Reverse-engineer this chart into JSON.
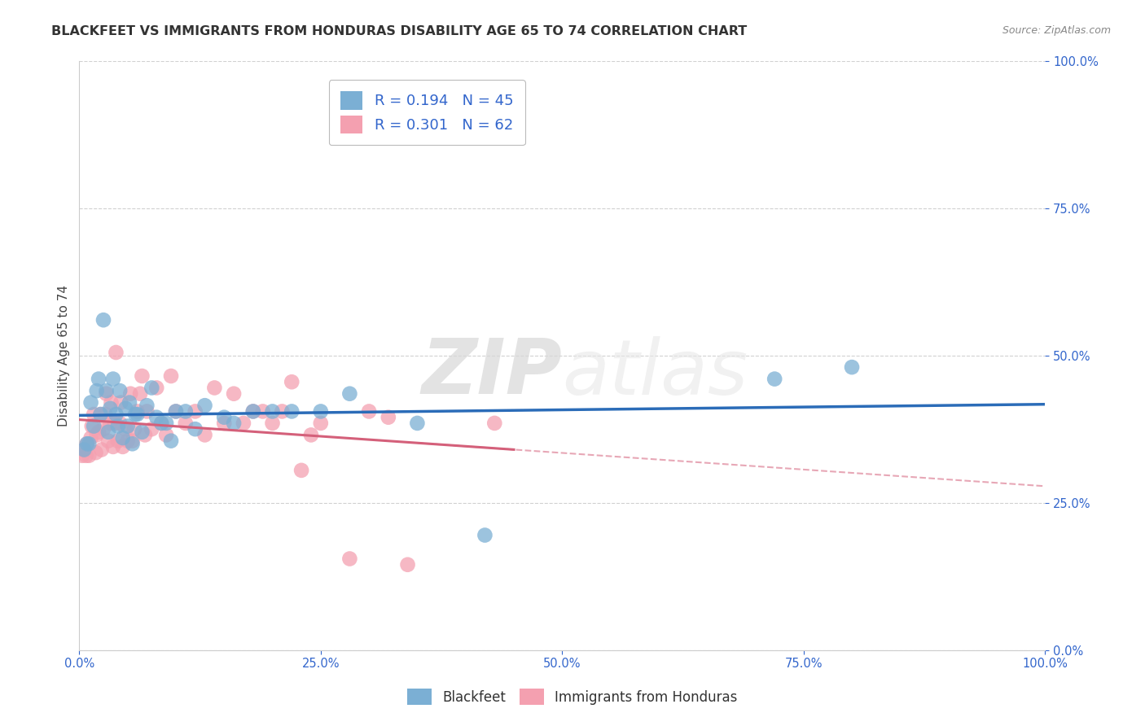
{
  "title": "BLACKFEET VS IMMIGRANTS FROM HONDURAS DISABILITY AGE 65 TO 74 CORRELATION CHART",
  "source": "Source: ZipAtlas.com",
  "ylabel": "Disability Age 65 to 74",
  "blue_label": "Blackfeet",
  "pink_label": "Immigrants from Honduras",
  "blue_R": 0.194,
  "blue_N": 45,
  "pink_R": 0.301,
  "pink_N": 62,
  "blue_color": "#7bafd4",
  "pink_color": "#f4a0b0",
  "blue_line_color": "#2b6cb8",
  "pink_line_color": "#d4607a",
  "xlim": [
    0,
    1
  ],
  "ylim": [
    0,
    1
  ],
  "xticks": [
    0.0,
    0.25,
    0.5,
    0.75,
    1.0
  ],
  "yticks": [
    0.0,
    0.25,
    0.5,
    0.75,
    1.0
  ],
  "blue_x": [
    0.005,
    0.008,
    0.01,
    0.012,
    0.015,
    0.018,
    0.02,
    0.022,
    0.025,
    0.028,
    0.03,
    0.032,
    0.035,
    0.038,
    0.04,
    0.042,
    0.045,
    0.048,
    0.05,
    0.052,
    0.055,
    0.058,
    0.06,
    0.065,
    0.07,
    0.075,
    0.08,
    0.085,
    0.09,
    0.095,
    0.1,
    0.11,
    0.12,
    0.13,
    0.15,
    0.16,
    0.18,
    0.2,
    0.22,
    0.25,
    0.28,
    0.35,
    0.42,
    0.72,
    0.8
  ],
  "blue_y": [
    0.34,
    0.35,
    0.35,
    0.42,
    0.38,
    0.44,
    0.46,
    0.4,
    0.56,
    0.44,
    0.37,
    0.41,
    0.46,
    0.4,
    0.38,
    0.44,
    0.36,
    0.41,
    0.38,
    0.42,
    0.35,
    0.4,
    0.4,
    0.37,
    0.415,
    0.445,
    0.395,
    0.385,
    0.385,
    0.355,
    0.405,
    0.405,
    0.375,
    0.415,
    0.395,
    0.385,
    0.405,
    0.405,
    0.405,
    0.405,
    0.435,
    0.385,
    0.195,
    0.46,
    0.48
  ],
  "pink_x": [
    0.003,
    0.005,
    0.007,
    0.008,
    0.01,
    0.012,
    0.013,
    0.015,
    0.017,
    0.018,
    0.02,
    0.022,
    0.023,
    0.025,
    0.027,
    0.028,
    0.03,
    0.032,
    0.033,
    0.035,
    0.037,
    0.038,
    0.04,
    0.042,
    0.043,
    0.045,
    0.048,
    0.05,
    0.053,
    0.055,
    0.057,
    0.06,
    0.063,
    0.065,
    0.068,
    0.07,
    0.075,
    0.08,
    0.085,
    0.09,
    0.095,
    0.1,
    0.11,
    0.12,
    0.13,
    0.14,
    0.15,
    0.16,
    0.17,
    0.18,
    0.19,
    0.2,
    0.21,
    0.22,
    0.23,
    0.24,
    0.25,
    0.28,
    0.3,
    0.32,
    0.34,
    0.43
  ],
  "pink_y": [
    0.33,
    0.34,
    0.33,
    0.35,
    0.33,
    0.36,
    0.38,
    0.4,
    0.335,
    0.365,
    0.37,
    0.4,
    0.34,
    0.375,
    0.4,
    0.435,
    0.355,
    0.385,
    0.42,
    0.345,
    0.385,
    0.505,
    0.355,
    0.385,
    0.42,
    0.345,
    0.375,
    0.355,
    0.435,
    0.355,
    0.375,
    0.405,
    0.435,
    0.465,
    0.365,
    0.405,
    0.375,
    0.445,
    0.385,
    0.365,
    0.465,
    0.405,
    0.385,
    0.405,
    0.365,
    0.445,
    0.385,
    0.435,
    0.385,
    0.405,
    0.405,
    0.385,
    0.405,
    0.455,
    0.305,
    0.365,
    0.385,
    0.155,
    0.405,
    0.395,
    0.145,
    0.385
  ],
  "watermark_zip": "ZIP",
  "watermark_atlas": "atlas",
  "background_color": "#ffffff",
  "grid_color": "#cccccc",
  "title_fontsize": 11.5,
  "axis_label_fontsize": 11,
  "tick_fontsize": 10.5,
  "legend_fontsize": 13
}
